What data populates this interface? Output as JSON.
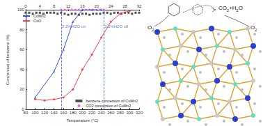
{
  "chart_data": {
    "type": "line",
    "xlabel": "Temperature (°C)",
    "ylabel": "Conversion of benzene (%)",
    "xlim": [
      80,
      320
    ],
    "xticks": [
      80,
      100,
      120,
      140,
      160,
      180,
      200,
      220,
      240,
      260,
      280,
      300,
      320
    ],
    "x2lim": [
      0,
      32
    ],
    "x2ticks": [
      0,
      4,
      8,
      12,
      16,
      20,
      24,
      28,
      32
    ],
    "ylim": [
      0,
      100
    ],
    "yticks": [
      0,
      20,
      40,
      60,
      80,
      100
    ],
    "grid": false,
    "series": [
      {
        "name": "CuMn2",
        "color": "#2f55d4",
        "marker": "triangle",
        "legend": "upper left",
        "x": [
          100,
          140,
          160,
          180,
          200,
          220,
          240
        ],
        "values": [
          12,
          38,
          60,
          88,
          100,
          100,
          100
        ]
      },
      {
        "name": "CuO",
        "color": "#e8454a",
        "marker": "circle",
        "legend": "upper left",
        "x": [
          100,
          120,
          140,
          160,
          180,
          200,
          220,
          240,
          260,
          280,
          300
        ],
        "values": [
          10,
          9,
          10,
          12,
          20,
          40,
          55,
          72,
          88,
          96,
          99
        ]
      },
      {
        "name": "benzene conversion of CuMn2",
        "color": "#222222",
        "marker": "square",
        "axis": "x2",
        "legend": "lower right",
        "type": "scatter",
        "x": [
          0,
          1,
          2,
          3,
          4,
          5,
          6,
          7,
          8,
          9,
          10,
          11,
          12,
          13,
          14,
          15,
          16,
          17,
          18,
          19,
          20,
          21,
          22,
          23,
          24,
          25,
          26,
          27,
          28,
          29,
          30,
          31,
          32
        ],
        "values": [
          97,
          97,
          96,
          97,
          97,
          96,
          97,
          97,
          97,
          96,
          97,
          96,
          95,
          96,
          96,
          95,
          96,
          96,
          95,
          96,
          96,
          96,
          97,
          97,
          96,
          97,
          97,
          96,
          97,
          97,
          96,
          97,
          97
        ]
      },
      {
        "name": "CO2 conversion of CuMn2",
        "color": "#e03ce0",
        "marker": "circle",
        "axis": "x2",
        "legend": "lower right",
        "type": "scatter",
        "x": [
          10,
          11,
          12,
          13,
          14,
          15,
          16,
          17,
          18,
          19,
          20,
          21,
          22
        ],
        "values": [
          100,
          100,
          100,
          100,
          100,
          100,
          100,
          100,
          100,
          100,
          100,
          100,
          100
        ]
      }
    ],
    "annotations": [
      {
        "text": "3.2%H2O on",
        "x": 10,
        "y": 83,
        "axis": "x2"
      },
      {
        "text": "3.2%H2O off",
        "x": 22,
        "y": 83,
        "axis": "x2"
      }
    ]
  },
  "diagram": {
    "labels": {
      "left_gas": "O2",
      "right_gas": "O2",
      "products": "CO2+H2O"
    }
  }
}
